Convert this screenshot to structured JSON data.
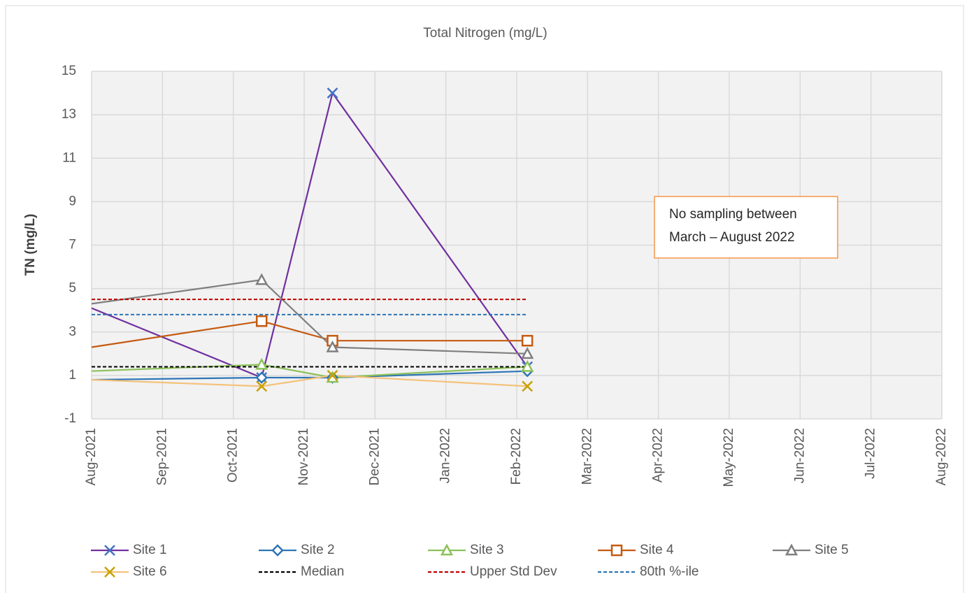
{
  "chart_data": {
    "type": "line",
    "title": "Total Nitrogen (mg/L)",
    "ylabel": "TN (mg/L)",
    "ylim": [
      -1,
      15
    ],
    "yticks": [
      -1,
      1,
      3,
      5,
      7,
      9,
      11,
      13,
      15
    ],
    "xlim": [
      0,
      12
    ],
    "xticks": [
      {
        "value": 0,
        "label": "Aug-2021"
      },
      {
        "value": 1,
        "label": "Sep-2021"
      },
      {
        "value": 2,
        "label": "Oct-2021"
      },
      {
        "value": 3,
        "label": "Nov-2021"
      },
      {
        "value": 4,
        "label": "Dec-2021"
      },
      {
        "value": 5,
        "label": "Jan-2022"
      },
      {
        "value": 6,
        "label": "Feb-2022"
      },
      {
        "value": 7,
        "label": "Mar-2022"
      },
      {
        "value": 8,
        "label": "Apr-2022"
      },
      {
        "value": 9,
        "label": "May-2022"
      },
      {
        "value": 10,
        "label": "Jun-2022"
      },
      {
        "value": 11,
        "label": "Jul-2022"
      },
      {
        "value": 12,
        "label": "Aug-2022"
      }
    ],
    "grid": true,
    "legend": "bottom",
    "annotation": [
      "No sampling between",
      "March – August 2022"
    ],
    "series": [
      {
        "name": "Site 1",
        "color": "#7030a0",
        "marker": "x",
        "marker_color": "#4472c4",
        "x": [
          0,
          2.4,
          3.4,
          6.15
        ],
        "values": [
          4.1,
          0.9,
          14,
          1.4
        ]
      },
      {
        "name": "Site 2",
        "color": "#2e75b6",
        "marker": "diamond",
        "marker_color": "#2e75b6",
        "x": [
          0,
          2.4,
          3.4,
          6.15
        ],
        "values": [
          0.8,
          0.9,
          0.9,
          1.2
        ]
      },
      {
        "name": "Site 3",
        "color": "#8cc15a",
        "marker": "triangle",
        "marker_color": "#8cc15a",
        "x": [
          0,
          2.4,
          3.4,
          6.15
        ],
        "values": [
          1.2,
          1.5,
          0.9,
          1.4
        ]
      },
      {
        "name": "Site 4",
        "color": "#c55a11",
        "marker": "square",
        "marker_color": "#c55a11",
        "x": [
          0,
          2.4,
          3.4,
          6.15
        ],
        "values": [
          2.3,
          3.5,
          2.6,
          2.6
        ]
      },
      {
        "name": "Site 5",
        "color": "#7f7f7f",
        "marker": "triangle",
        "marker_color": "#7f7f7f",
        "x": [
          0,
          2.4,
          3.4,
          6.15
        ],
        "values": [
          4.3,
          5.4,
          2.3,
          2.0
        ]
      },
      {
        "name": "Site 6",
        "color": "#f4c27a",
        "marker": "x",
        "marker_color": "#c9a000",
        "x": [
          0,
          2.4,
          3.4,
          6.15
        ],
        "values": [
          0.8,
          0.5,
          1.0,
          0.5
        ]
      },
      {
        "name": "Median",
        "color": "#000000",
        "dash": true,
        "x": [
          0,
          6.15
        ],
        "values": [
          1.4,
          1.4
        ]
      },
      {
        "name": "Upper Std Dev",
        "color": "#c00000",
        "dash": true,
        "x": [
          0,
          6.15
        ],
        "values": [
          4.5,
          4.5
        ]
      },
      {
        "name": "80th %-ile",
        "color": "#2e75b6",
        "dash": true,
        "x": [
          0,
          6.15
        ],
        "values": [
          3.8,
          3.8
        ]
      }
    ]
  }
}
